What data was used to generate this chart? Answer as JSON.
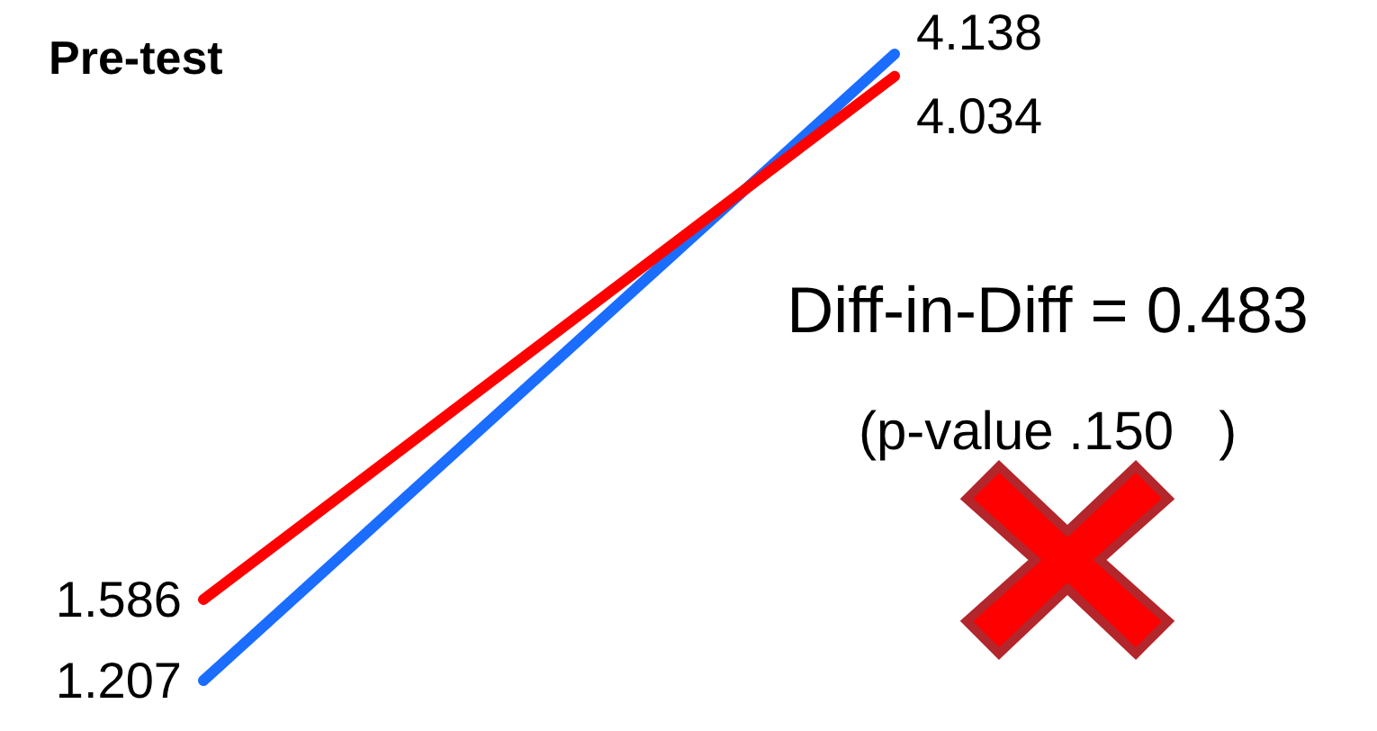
{
  "chart_data": {
    "type": "line",
    "title": "Pre-test",
    "categories": [
      null,
      null
    ],
    "series": [
      {
        "color": "#1a6dff",
        "values": [
          1.207,
          4.138
        ]
      },
      {
        "color": "#ff0000",
        "values": [
          1.586,
          4.034
        ]
      }
    ],
    "data_labels": true,
    "marker": "none",
    "line_style": "solid",
    "tick_labels": false,
    "annotations": [
      "Diff-in-Diff = 0.483",
      "(p-value .150   )"
    ]
  }
}
